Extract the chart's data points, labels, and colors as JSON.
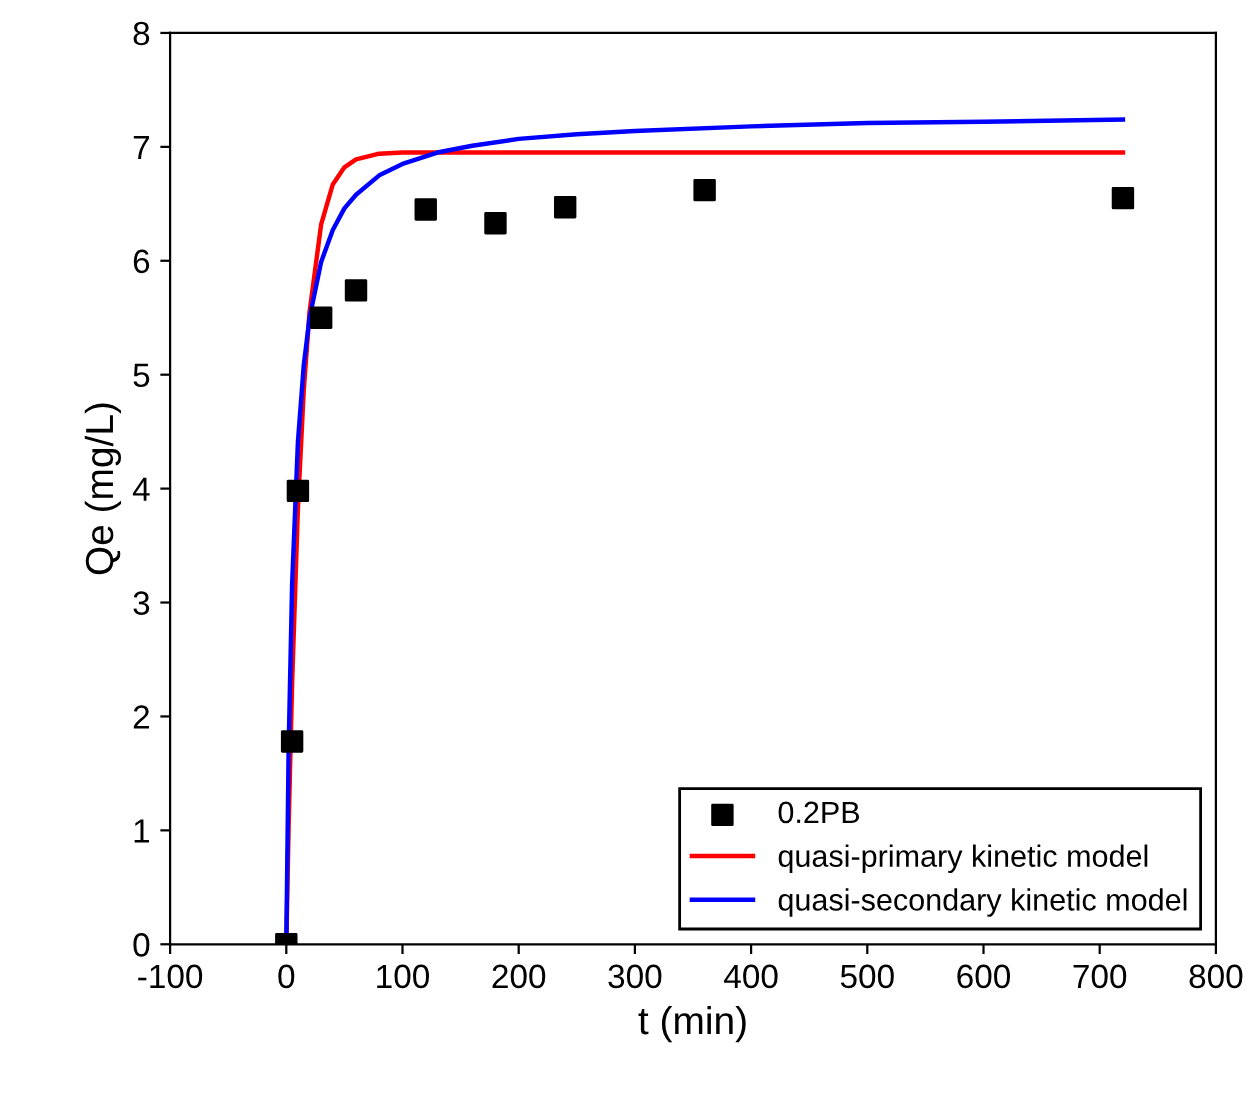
{
  "chart_data": {
    "type": "scatter",
    "xlabel": "t (min)",
    "ylabel": "Qe (mg/L)",
    "xlim": [
      -100,
      800
    ],
    "xticks": [
      -100,
      0,
      100,
      200,
      300,
      400,
      500,
      600,
      700,
      800
    ],
    "ylim": [
      0,
      8
    ],
    "yticks": [
      0,
      1,
      2,
      3,
      4,
      5,
      6,
      7,
      8
    ],
    "legend": "bottom right",
    "grid": false,
    "series": [
      {
        "name": "0.2PB",
        "marker": "square",
        "color": "#000000",
        "x": [
          0,
          5,
          10,
          30,
          60,
          120,
          180,
          240,
          360,
          720
        ],
        "values": [
          0,
          1.78,
          3.98,
          5.5,
          5.74,
          6.45,
          6.33,
          6.47,
          6.62,
          6.55
        ]
      },
      {
        "name": "quasi-primary kinetic model",
        "type": "line",
        "marker": "none",
        "line_style": "solid",
        "color": "#ff0000",
        "x": [
          0,
          2,
          5,
          10,
          15,
          20,
          30,
          40,
          50,
          60,
          80,
          100,
          200,
          300,
          400,
          500,
          600,
          720
        ],
        "values": [
          0,
          1.03,
          2.29,
          3.83,
          4.86,
          5.55,
          6.32,
          6.67,
          6.82,
          6.89,
          6.94,
          6.95,
          6.95,
          6.95,
          6.95,
          6.95,
          6.95,
          6.95
        ]
      },
      {
        "name": "quasi-secondary kinetic model",
        "type": "line",
        "marker": "none",
        "line_style": "solid",
        "color": "#0000ff",
        "x": [
          0,
          2,
          5,
          10,
          15,
          20,
          30,
          40,
          50,
          60,
          80,
          100,
          130,
          160,
          200,
          250,
          300,
          400,
          500,
          600,
          720
        ],
        "values": [
          0,
          1.71,
          3.16,
          4.41,
          5.08,
          5.5,
          5.99,
          6.27,
          6.46,
          6.58,
          6.75,
          6.85,
          6.95,
          7.01,
          7.07,
          7.11,
          7.14,
          7.18,
          7.21,
          7.22,
          7.24
        ]
      }
    ]
  }
}
